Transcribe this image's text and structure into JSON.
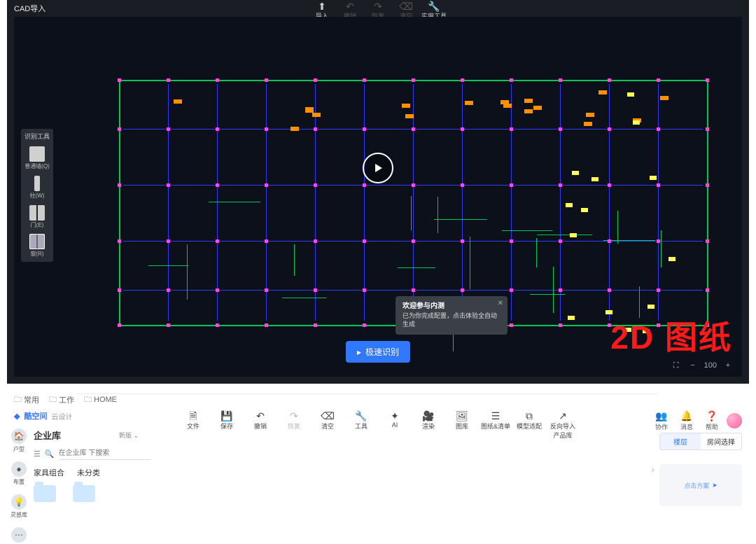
{
  "cad": {
    "title": "CAD导入",
    "top_buttons": [
      {
        "icon": "⬆",
        "label": "导入",
        "dim": false
      },
      {
        "icon": "↶",
        "label": "撤销",
        "dim": true
      },
      {
        "icon": "↷",
        "label": "恢复",
        "dim": true
      },
      {
        "icon": "⌫",
        "label": "清空",
        "dim": true
      },
      {
        "icon": "🔧",
        "label": "实用工具 ▾",
        "dim": false
      }
    ],
    "tool_panel": {
      "title": "识别工具",
      "items": [
        {
          "shape": "sw",
          "label": "普通墙(Q)"
        },
        {
          "shape": "thin",
          "label": "柱(W)"
        },
        {
          "shape": "door",
          "label": "门(E)"
        },
        {
          "shape": "window",
          "label": "窗(R)"
        }
      ]
    },
    "tooltip": {
      "title": "欢迎参与内测",
      "body": "已为你完成配置，点击体验全自动生成"
    },
    "primary_action": {
      "icon": "▸",
      "label": "极速识别"
    },
    "watermark": "2D 图纸",
    "zoom": {
      "value": "100"
    },
    "floorplan": {
      "outline_color": "#00c853",
      "wall_color": "#2f3cff",
      "accent_color": "#ff9100",
      "detail_color": "#ffff55",
      "canvas_bg": "#0b101b"
    }
  },
  "design": {
    "tabs": [
      {
        "icon": "🗀",
        "label": "常用"
      },
      {
        "icon": "🗀",
        "label": "工作"
      },
      {
        "icon": "🗀",
        "label": "HOME"
      }
    ],
    "brand": {
      "name": "酷空间",
      "sub": "云设计"
    },
    "toolbar": [
      {
        "icon": "🗎",
        "label": "文件",
        "dim": false
      },
      {
        "icon": "💾",
        "label": "保存",
        "dim": false
      },
      {
        "icon": "↶",
        "label": "撤销",
        "dim": false
      },
      {
        "icon": "↷",
        "label": "恢复",
        "dim": true
      },
      {
        "icon": "⌫",
        "label": "清空",
        "dim": false
      },
      {
        "icon": "🔧",
        "label": "工具",
        "dim": false
      },
      {
        "icon": "✦",
        "label": "AI",
        "dim": false
      },
      {
        "icon": "🎥",
        "label": "渲染",
        "dim": false
      },
      {
        "icon": "🖼",
        "label": "图库",
        "dim": false
      },
      {
        "icon": "☰",
        "label": "图纸&清单",
        "dim": false
      },
      {
        "icon": "⧉",
        "label": "模型适配",
        "dim": false
      },
      {
        "icon": "↗",
        "label": "反向导入产品库",
        "dim": false
      }
    ],
    "right_top": [
      {
        "icon": "👥",
        "label": "协作"
      },
      {
        "icon": "🔔",
        "label": "消息"
      },
      {
        "icon": "❓",
        "label": "帮助"
      }
    ],
    "left_rail": [
      {
        "icon": "🏠",
        "label": "户型"
      },
      {
        "icon": "●",
        "label": "布置"
      },
      {
        "icon": "💡",
        "label": "灵感库"
      },
      {
        "icon": "⋯",
        "label": ""
      }
    ],
    "panel": {
      "title": "企业库",
      "new_badge": "新版 ⌄",
      "search_placeholder": "在企业库 下搜索",
      "categories": [
        "家具组合",
        "未分类"
      ]
    },
    "right_panel": {
      "seg": [
        "楼层",
        "房间选择"
      ],
      "active": 0,
      "minimap_label": "点击方案"
    }
  }
}
